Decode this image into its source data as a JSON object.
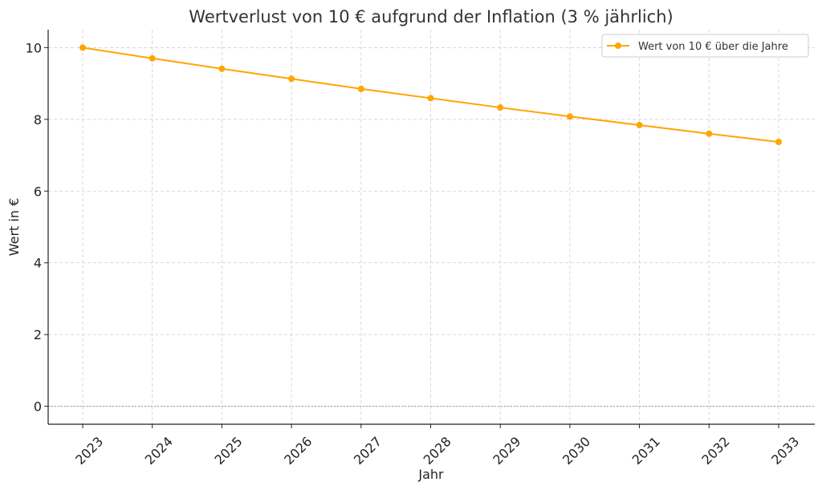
{
  "chart_data": {
    "type": "line",
    "title": "Wertverlust von 10 € aufgrund der Inflation (3 % jährlich)",
    "xlabel": "Jahr",
    "ylabel": "Wert in €",
    "x": [
      "2023",
      "2024",
      "2025",
      "2026",
      "2027",
      "2028",
      "2029",
      "2030",
      "2031",
      "2032",
      "2033"
    ],
    "series": [
      {
        "name": "Wert von 10 € über die Jahre",
        "color": "#FFA500",
        "values": [
          10.0,
          9.7,
          9.41,
          9.13,
          8.85,
          8.59,
          8.33,
          8.08,
          7.84,
          7.6,
          7.37
        ]
      }
    ],
    "ylim": [
      -0.5,
      10.5
    ],
    "yticks": [
      0,
      2,
      4,
      6,
      8,
      10
    ],
    "grid": true,
    "legend": "top-right"
  }
}
